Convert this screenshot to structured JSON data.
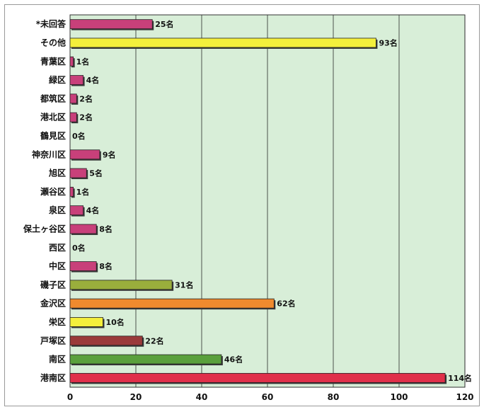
{
  "chart_data": {
    "type": "bar",
    "orientation": "horizontal",
    "title": "",
    "xlabel": "",
    "ylabel": "",
    "xlim": [
      0,
      120
    ],
    "xticks": [
      0,
      20,
      40,
      60,
      80,
      100,
      120
    ],
    "value_suffix": "名",
    "grid": true,
    "background": "#d8eed8",
    "categories": [
      {
        "label": "*未回答",
        "value": 25,
        "color": "#c8407a"
      },
      {
        "label": "その他",
        "value": 93,
        "color": "#f4ef3c"
      },
      {
        "label": "青葉区",
        "value": 1,
        "color": "#c8407a"
      },
      {
        "label": "緑区",
        "value": 4,
        "color": "#c8407a"
      },
      {
        "label": "都筑区",
        "value": 2,
        "color": "#c8407a"
      },
      {
        "label": "港北区",
        "value": 2,
        "color": "#c8407a"
      },
      {
        "label": "鶴見区",
        "value": 0,
        "color": "#c8407a"
      },
      {
        "label": "神奈川区",
        "value": 9,
        "color": "#c8407a"
      },
      {
        "label": "旭区",
        "value": 5,
        "color": "#c8407a"
      },
      {
        "label": "瀬谷区",
        "value": 1,
        "color": "#c8407a"
      },
      {
        "label": "泉区",
        "value": 4,
        "color": "#c8407a"
      },
      {
        "label": "保土ヶ谷区",
        "value": 8,
        "color": "#c8407a"
      },
      {
        "label": "西区",
        "value": 0,
        "color": "#c8407a"
      },
      {
        "label": "中区",
        "value": 8,
        "color": "#c8407a"
      },
      {
        "label": "磯子区",
        "value": 31,
        "color": "#9aae3c"
      },
      {
        "label": "金沢区",
        "value": 62,
        "color": "#ef8a2e"
      },
      {
        "label": "栄区",
        "value": 10,
        "color": "#f4ef3c"
      },
      {
        "label": "戸塚区",
        "value": 22,
        "color": "#9a3a3a"
      },
      {
        "label": "南区",
        "value": 46,
        "color": "#5aa03c"
      },
      {
        "label": "港南区",
        "value": 114,
        "color": "#e0304a"
      }
    ]
  }
}
